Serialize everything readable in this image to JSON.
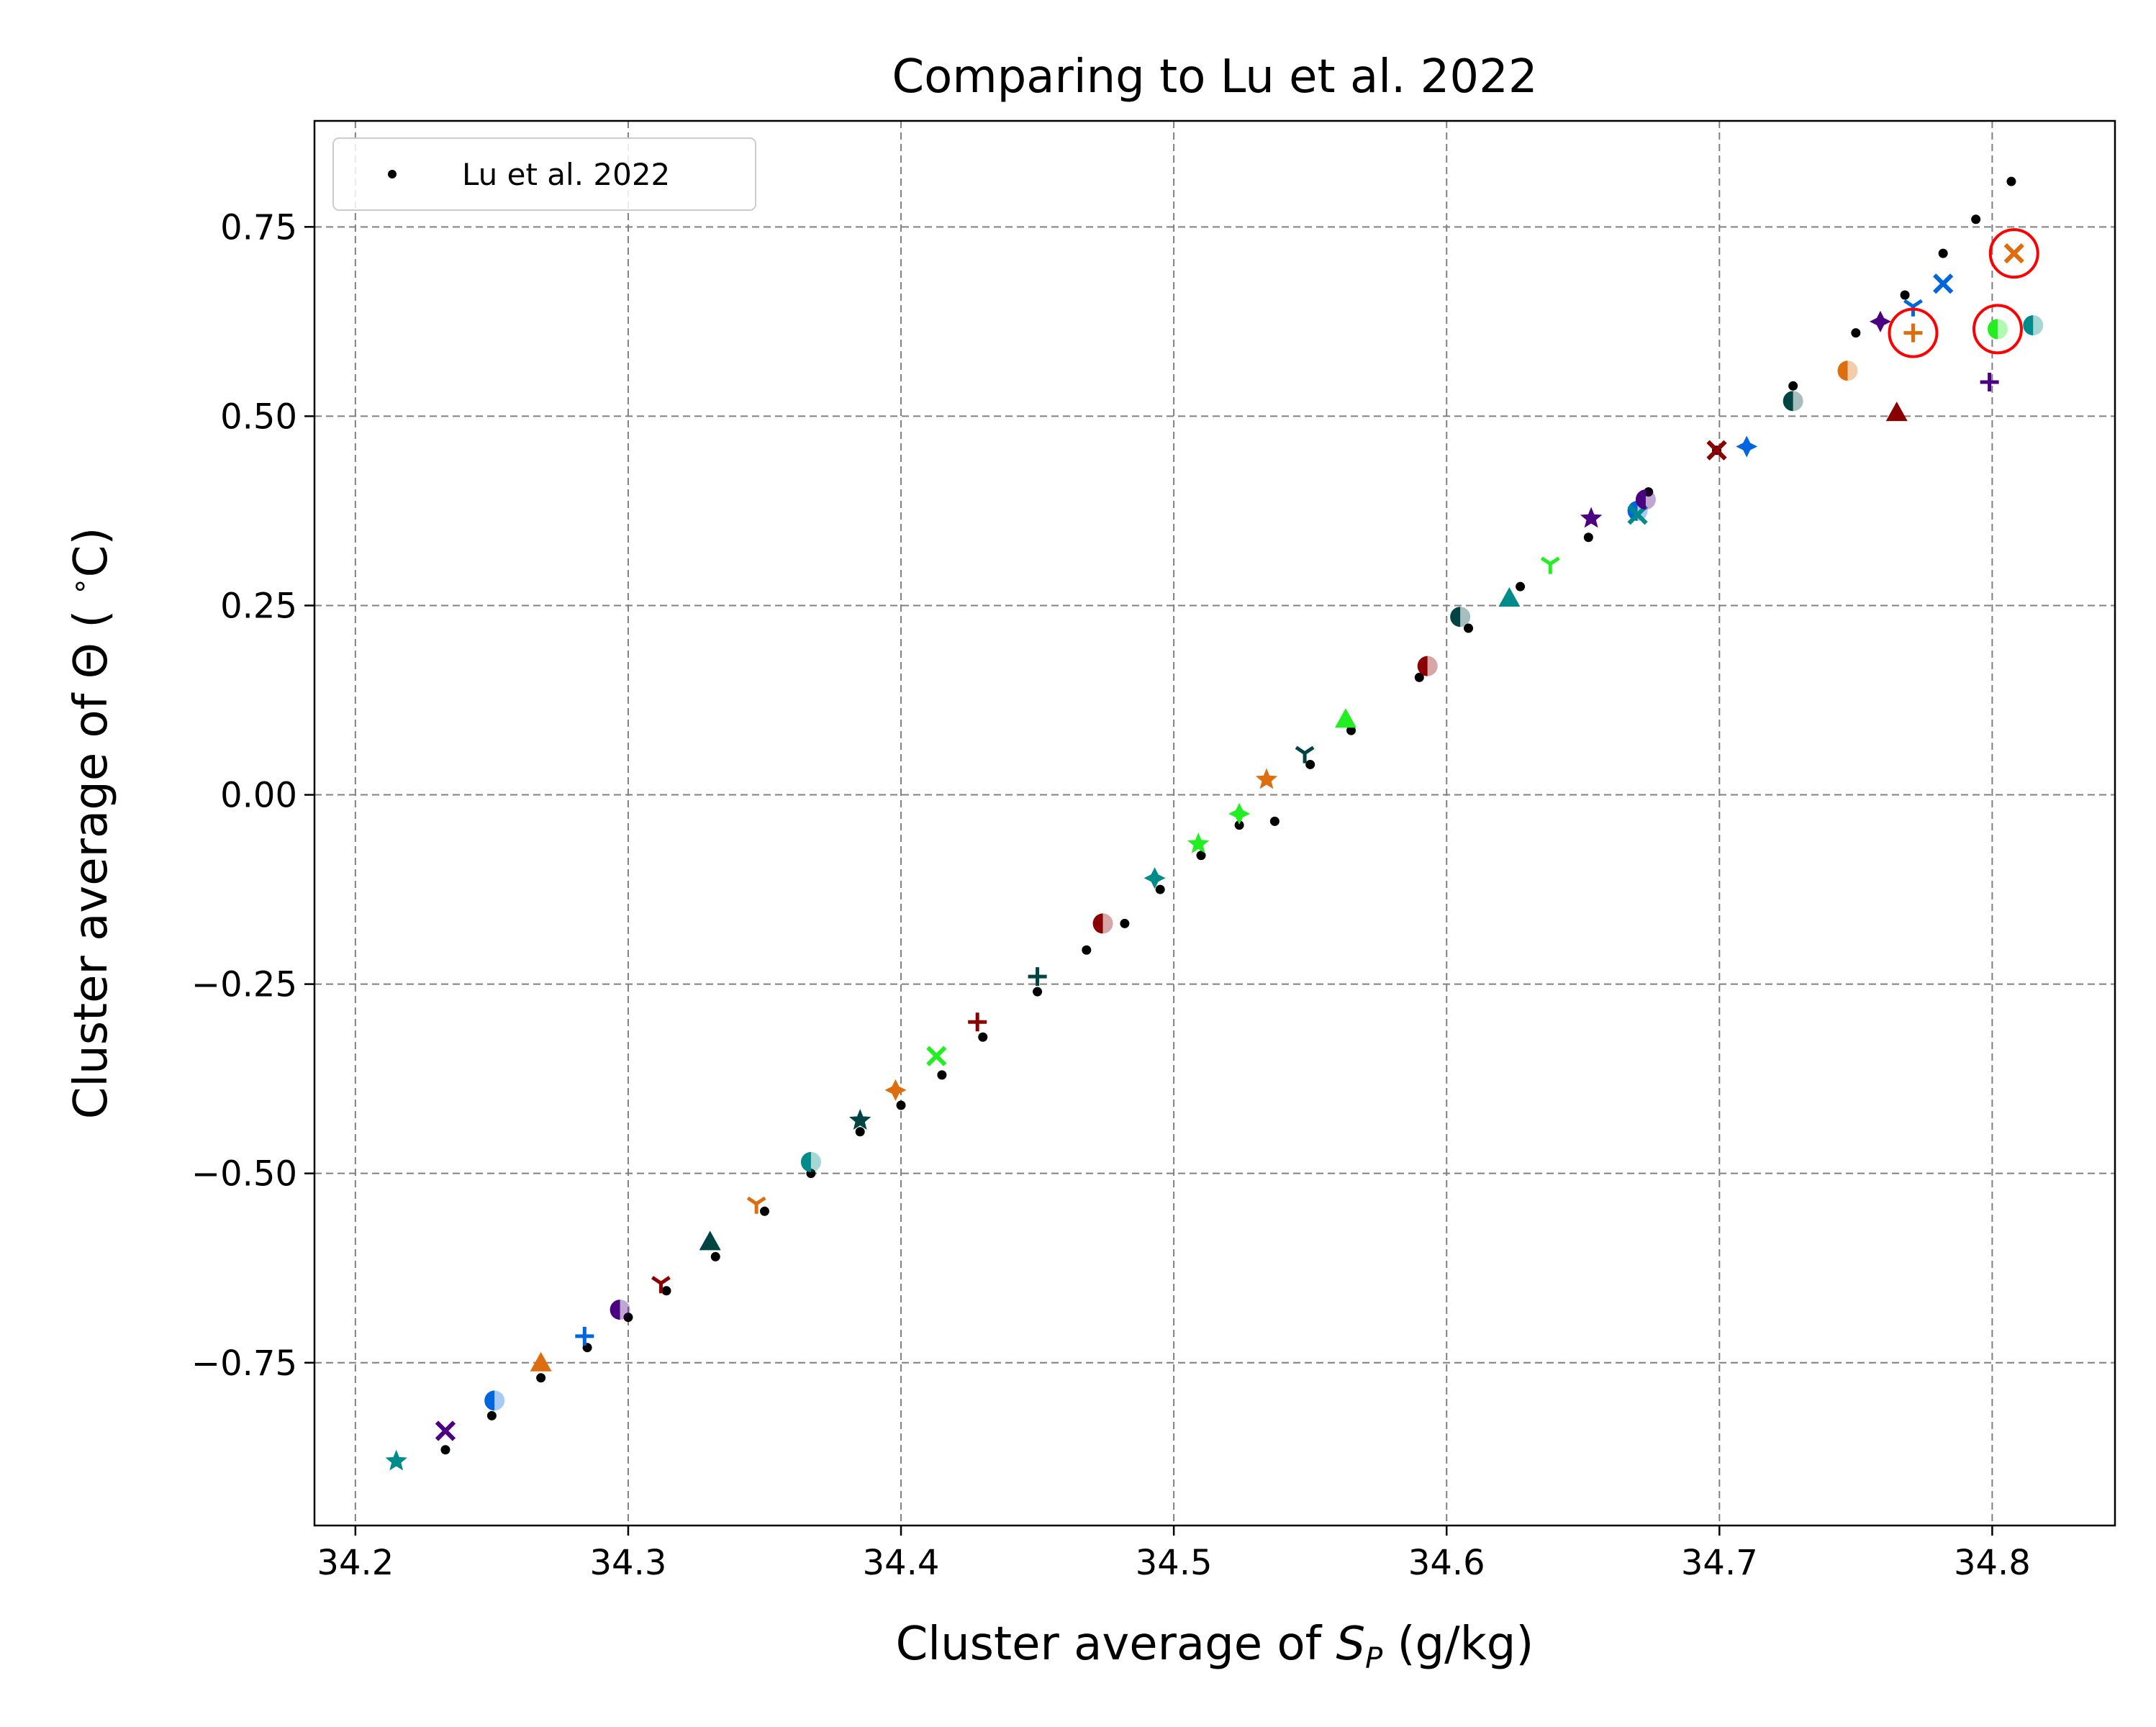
{
  "chart_data": {
    "type": "scatter",
    "title": "Comparing to Lu et al. 2022",
    "xlabel": "Cluster average of S_P (g/kg)",
    "xlabel_main": "Cluster average of ",
    "xlabel_var": "S",
    "xlabel_sub": "P",
    "xlabel_unit": " (g/kg)",
    "ylabel": "Cluster average of Θ (°C)",
    "ylabel_text": "Cluster average of Θ ( ",
    "ylabel_deg": "∘",
    "ylabel_end": "C)",
    "xlim": [
      34.185,
      34.845
    ],
    "ylim": [
      -0.965,
      0.89
    ],
    "xticks": [
      34.2,
      34.3,
      34.4,
      34.5,
      34.6,
      34.7,
      34.8
    ],
    "xtick_labels": [
      "34.2",
      "34.3",
      "34.4",
      "34.5",
      "34.6",
      "34.7",
      "34.8"
    ],
    "yticks": [
      0.75,
      0.5,
      0.25,
      0.0,
      -0.25,
      -0.5,
      -0.75
    ],
    "ytick_labels": [
      "0.75",
      "0.50",
      "0.25",
      "0.00",
      "−0.25",
      "−0.50",
      "−0.75"
    ],
    "grid": true,
    "legend": {
      "position": "top-left",
      "entries": [
        "Lu et al. 2022"
      ]
    },
    "reference_series": {
      "name": "Lu et al. 2022",
      "color": "#000000",
      "points": [
        [
          34.233,
          -0.865
        ],
        [
          34.25,
          -0.82
        ],
        [
          34.268,
          -0.77
        ],
        [
          34.285,
          -0.73
        ],
        [
          34.3,
          -0.69
        ],
        [
          34.314,
          -0.655
        ],
        [
          34.332,
          -0.61
        ],
        [
          34.35,
          -0.55
        ],
        [
          34.367,
          -0.5
        ],
        [
          34.385,
          -0.445
        ],
        [
          34.4,
          -0.41
        ],
        [
          34.415,
          -0.37
        ],
        [
          34.43,
          -0.32
        ],
        [
          34.45,
          -0.26
        ],
        [
          34.468,
          -0.205
        ],
        [
          34.482,
          -0.17
        ],
        [
          34.495,
          -0.125
        ],
        [
          34.51,
          -0.08
        ],
        [
          34.524,
          -0.04
        ],
        [
          34.537,
          -0.035
        ],
        [
          34.55,
          0.04
        ],
        [
          34.565,
          0.085
        ],
        [
          34.59,
          0.155
        ],
        [
          34.608,
          0.22
        ],
        [
          34.627,
          0.275
        ],
        [
          34.652,
          0.34
        ],
        [
          34.674,
          0.4
        ],
        [
          34.699,
          0.455
        ],
        [
          34.727,
          0.54
        ],
        [
          34.75,
          0.61
        ],
        [
          34.768,
          0.66
        ],
        [
          34.782,
          0.715
        ],
        [
          34.794,
          0.76
        ],
        [
          34.807,
          0.81
        ]
      ]
    },
    "cluster_points": [
      {
        "x": 34.215,
        "y": -0.88,
        "marker": "star",
        "color": "#008b8b"
      },
      {
        "x": 34.233,
        "y": -0.84,
        "marker": "x",
        "color": "#4b0082"
      },
      {
        "x": 34.251,
        "y": -0.8,
        "marker": "half",
        "color": "#0066dd"
      },
      {
        "x": 34.268,
        "y": -0.75,
        "marker": "triangle",
        "color": "#dd6e0f"
      },
      {
        "x": 34.284,
        "y": -0.715,
        "marker": "plus",
        "color": "#0066dd"
      },
      {
        "x": 34.297,
        "y": -0.68,
        "marker": "half",
        "color": "#4b0082"
      },
      {
        "x": 34.312,
        "y": -0.645,
        "marker": "tri",
        "color": "#8b0000"
      },
      {
        "x": 34.33,
        "y": -0.59,
        "marker": "triangle",
        "color": "#004444"
      },
      {
        "x": 34.347,
        "y": -0.54,
        "marker": "tri",
        "color": "#dd6e0f"
      },
      {
        "x": 34.367,
        "y": -0.485,
        "marker": "half",
        "color": "#008b8b"
      },
      {
        "x": 34.385,
        "y": -0.43,
        "marker": "star",
        "color": "#004444"
      },
      {
        "x": 34.398,
        "y": -0.39,
        "marker": "diamond4",
        "color": "#dd6e0f"
      },
      {
        "x": 34.413,
        "y": -0.345,
        "marker": "x",
        "color": "#22ee22"
      },
      {
        "x": 34.428,
        "y": -0.3,
        "marker": "plus",
        "color": "#8b0000"
      },
      {
        "x": 34.45,
        "y": -0.24,
        "marker": "plus",
        "color": "#004444"
      },
      {
        "x": 34.474,
        "y": -0.17,
        "marker": "half",
        "color": "#8b0000"
      },
      {
        "x": 34.493,
        "y": -0.11,
        "marker": "diamond4",
        "color": "#008b8b"
      },
      {
        "x": 34.509,
        "y": -0.065,
        "marker": "star",
        "color": "#22ee22"
      },
      {
        "x": 34.524,
        "y": -0.025,
        "marker": "diamond4",
        "color": "#22ee22"
      },
      {
        "x": 34.534,
        "y": 0.02,
        "marker": "star",
        "color": "#dd6e0f"
      },
      {
        "x": 34.548,
        "y": 0.055,
        "marker": "tri",
        "color": "#004444"
      },
      {
        "x": 34.563,
        "y": 0.1,
        "marker": "triangle",
        "color": "#22ee22"
      },
      {
        "x": 34.593,
        "y": 0.17,
        "marker": "half",
        "color": "#8b0000"
      },
      {
        "x": 34.605,
        "y": 0.235,
        "marker": "half",
        "color": "#004444"
      },
      {
        "x": 34.623,
        "y": 0.26,
        "marker": "triangle",
        "color": "#008b8b"
      },
      {
        "x": 34.638,
        "y": 0.305,
        "marker": "tri",
        "color": "#22ee22"
      },
      {
        "x": 34.653,
        "y": 0.365,
        "marker": "star",
        "color": "#4b0082"
      },
      {
        "x": 34.67,
        "y": 0.375,
        "marker": "half",
        "color": "#0066dd"
      },
      {
        "x": 34.67,
        "y": 0.37,
        "marker": "x",
        "color": "#008b8b"
      },
      {
        "x": 34.673,
        "y": 0.39,
        "marker": "half",
        "color": "#4b0082"
      },
      {
        "x": 34.699,
        "y": 0.455,
        "marker": "x",
        "color": "#8b0000"
      },
      {
        "x": 34.71,
        "y": 0.46,
        "marker": "diamond4",
        "color": "#0066dd"
      },
      {
        "x": 34.727,
        "y": 0.52,
        "marker": "half",
        "color": "#004444"
      },
      {
        "x": 34.747,
        "y": 0.56,
        "marker": "half",
        "color": "#dd6e0f"
      },
      {
        "x": 34.759,
        "y": 0.625,
        "marker": "diamond4",
        "color": "#4b0082"
      },
      {
        "x": 34.765,
        "y": 0.505,
        "marker": "triangle",
        "color": "#8b0000"
      },
      {
        "x": 34.771,
        "y": 0.645,
        "marker": "tri",
        "color": "#0066dd"
      },
      {
        "x": 34.771,
        "y": 0.61,
        "marker": "plus",
        "color": "#dd6e0f"
      },
      {
        "x": 34.782,
        "y": 0.675,
        "marker": "x",
        "color": "#0066dd"
      },
      {
        "x": 34.799,
        "y": 0.545,
        "marker": "plus",
        "color": "#4b0082"
      },
      {
        "x": 34.802,
        "y": 0.615,
        "marker": "half",
        "color": "#22ee22"
      },
      {
        "x": 34.808,
        "y": 0.715,
        "marker": "x",
        "color": "#dd6e0f"
      },
      {
        "x": 34.815,
        "y": 0.62,
        "marker": "half",
        "color": "#008b8b"
      }
    ],
    "highlight_circles": [
      {
        "x": 34.771,
        "y": 0.61,
        "color": "#ff0000"
      },
      {
        "x": 34.802,
        "y": 0.615,
        "color": "#ff0000"
      },
      {
        "x": 34.808,
        "y": 0.715,
        "color": "#ff0000"
      }
    ]
  }
}
